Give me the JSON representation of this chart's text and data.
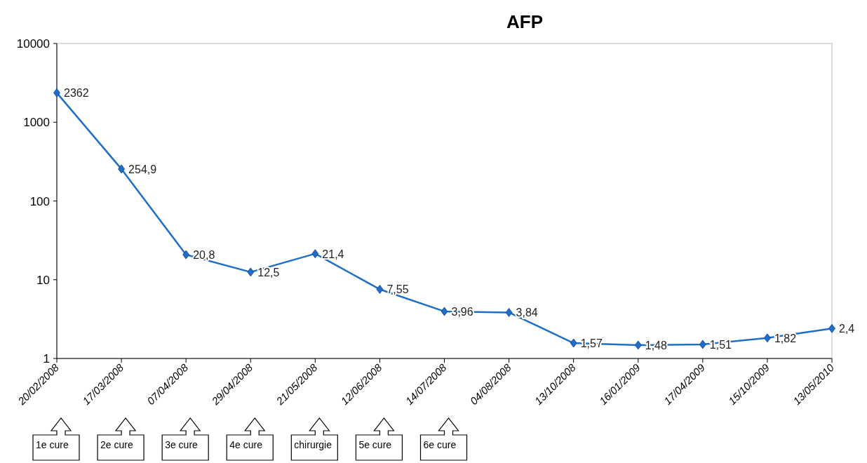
{
  "chart_data": {
    "type": "line",
    "title": "AFP",
    "categories": [
      "20/02/2008",
      "17/03/2008",
      "07/04/2008",
      "29/04/2008",
      "21/05/2008",
      "12/06/2008",
      "14/07/2008",
      "04/08/2008",
      "13/10/2008",
      "16/01/2009",
      "17/04/2009",
      "15/10/2009",
      "13/05/2010"
    ],
    "series": [
      {
        "color": "#1f6fc6",
        "values": [
          2362,
          254.9,
          20.8,
          12.5,
          21.4,
          7.55,
          3.96,
          3.84,
          1.57,
          1.48,
          1.51,
          1.82,
          2.4
        ],
        "value_labels": [
          "2362",
          "254,9",
          "20,8",
          "12,5",
          "21,4",
          "7,55",
          "3,96",
          "3,84",
          "1,57",
          "1,48",
          "1,51",
          "1,82",
          "2,4"
        ]
      }
    ],
    "log": true,
    "ylim": [
      1,
      10000
    ],
    "yticks": [
      1,
      10,
      100,
      1000,
      10000
    ],
    "marker": "diamond",
    "line_style": "solid",
    "grid": false,
    "annotations": [
      "1e cure",
      "2e cure",
      "3e cure",
      "4e cure",
      "chirurgie",
      "5e cure",
      "6e cure"
    ]
  }
}
